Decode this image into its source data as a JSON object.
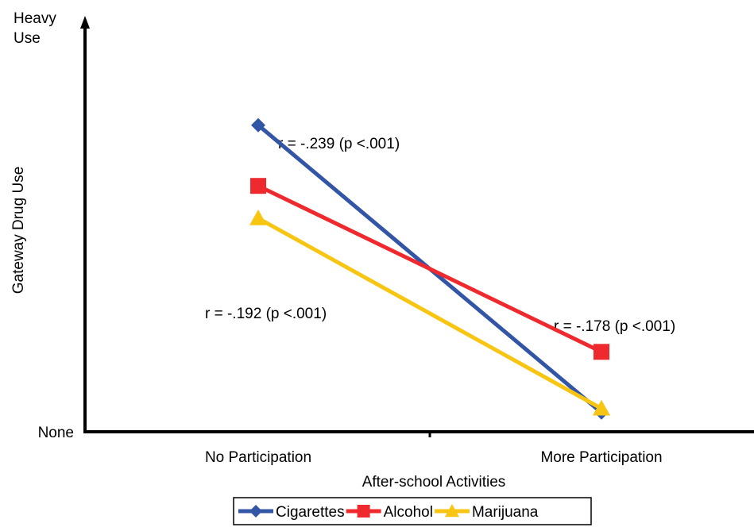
{
  "chart_data": {
    "type": "line",
    "x": [
      "No Participation",
      "More Participation"
    ],
    "xlabel": "After-school Activities",
    "ylabel": "Gateway Drug Use",
    "y_tick_labels": {
      "top": "Heavy Use",
      "bottom": "None"
    },
    "ylim": [
      0,
      1
    ],
    "series": [
      {
        "name": "Cigarettes",
        "color": "#3355A5",
        "marker": "diamond",
        "values": [
          0.73,
          0.02
        ]
      },
      {
        "name": "Alcohol",
        "color": "#EE2A2F",
        "marker": "square",
        "values": [
          0.58,
          0.17
        ]
      },
      {
        "name": "Marijuana",
        "color": "#F8C513",
        "marker": "triangle",
        "values": [
          0.5,
          0.03
        ]
      }
    ],
    "annotations": [
      {
        "text": "r = -.239 (p <.001)"
      },
      {
        "text": "r = -.192 (p <.001)"
      },
      {
        "text": "r = -.178 (p <.001)"
      }
    ],
    "legend_position": "bottom",
    "grid": false
  }
}
